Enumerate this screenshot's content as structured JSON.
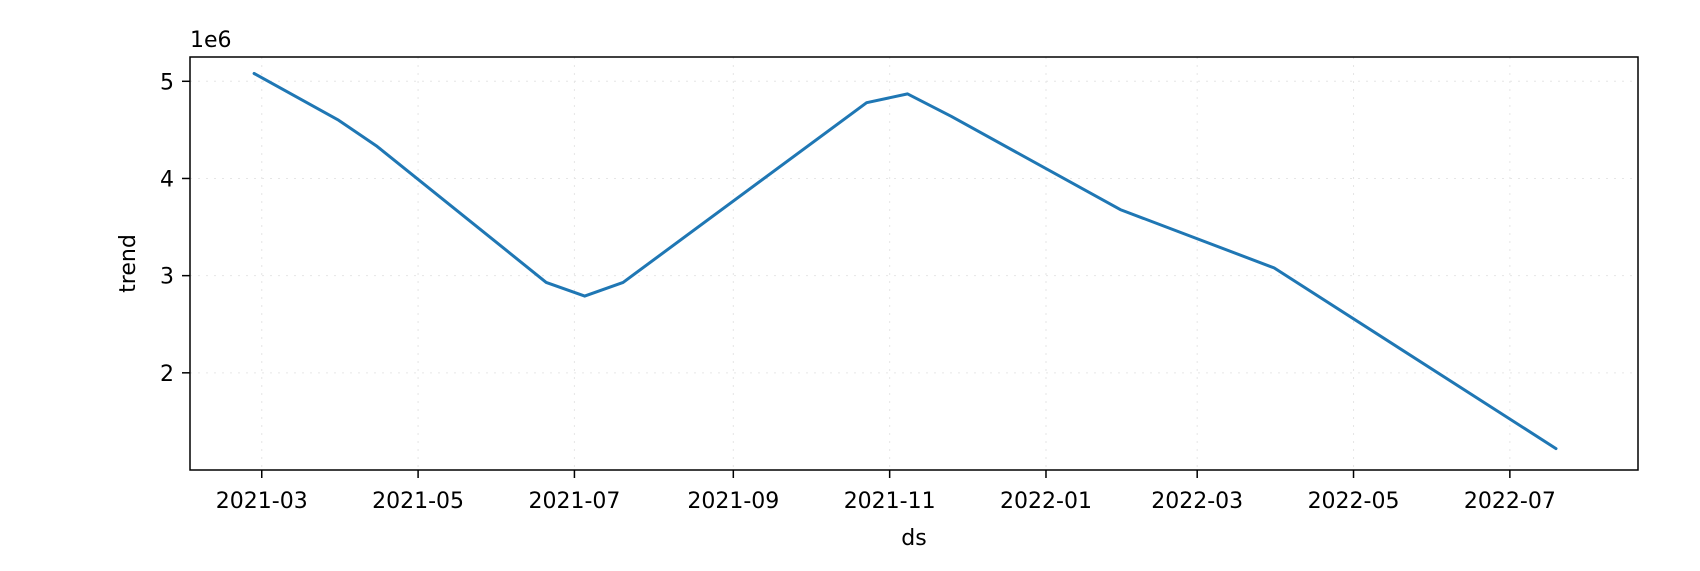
{
  "chart_data": {
    "type": "line",
    "title": "",
    "xlabel": "ds",
    "ylabel": "trend",
    "y_offset_text": "1e6",
    "y_scale_multiplier": 1000000,
    "grid": true,
    "legend": "none",
    "line_color": "#1f77b4",
    "xlim": [
      "2021-02-01",
      "2022-08-20"
    ],
    "ylim": [
      1.0,
      5.25
    ],
    "x_ticks": [
      {
        "value": "2021-03-01",
        "label": "2021-03"
      },
      {
        "value": "2021-05-01",
        "label": "2021-05"
      },
      {
        "value": "2021-07-01",
        "label": "2021-07"
      },
      {
        "value": "2021-09-01",
        "label": "2021-09"
      },
      {
        "value": "2021-11-01",
        "label": "2021-11"
      },
      {
        "value": "2022-01-01",
        "label": "2022-01"
      },
      {
        "value": "2022-03-01",
        "label": "2022-03"
      },
      {
        "value": "2022-05-01",
        "label": "2022-05"
      },
      {
        "value": "2022-07-01",
        "label": "2022-07"
      }
    ],
    "y_ticks": [
      {
        "value": 2,
        "label": "2"
      },
      {
        "value": 3,
        "label": "3"
      },
      {
        "value": 4,
        "label": "4"
      },
      {
        "value": 5,
        "label": "5"
      }
    ],
    "series": [
      {
        "x": [
          "2021-02-26",
          "2021-03-31",
          "2021-04-15",
          "2021-06-20",
          "2021-07-05",
          "2021-07-20",
          "2021-10-23",
          "2021-11-08",
          "2021-11-25",
          "2022-01-30",
          "2022-03-31",
          "2022-07-19"
        ],
        "y": [
          5.08,
          4.6,
          4.33,
          2.93,
          2.79,
          2.93,
          4.78,
          4.87,
          4.64,
          3.68,
          3.08,
          1.22
        ]
      }
    ]
  }
}
